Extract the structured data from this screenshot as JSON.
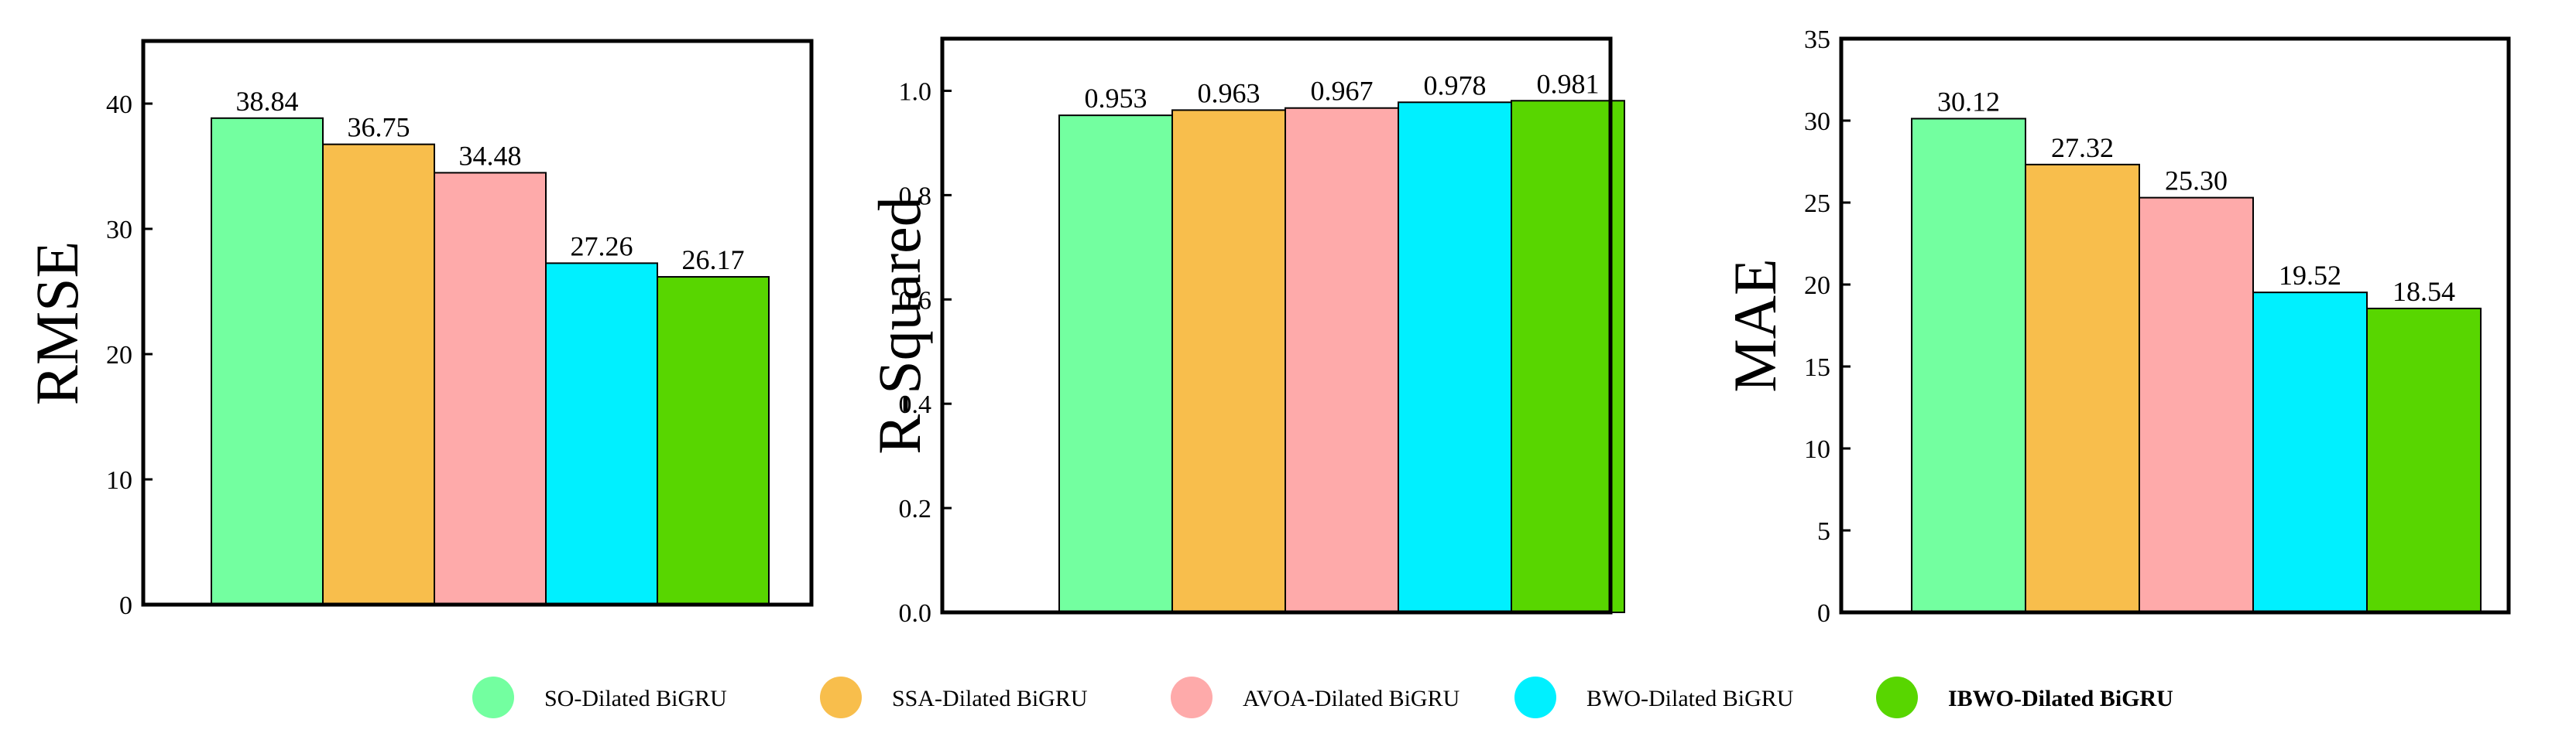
{
  "legend": [
    {
      "label": "SO-Dilated BiGRU",
      "color": "#73FFA0",
      "bold": false
    },
    {
      "label": "SSA-Dilated BiGRU",
      "color": "#F8BE4C",
      "bold": false
    },
    {
      "label": "AVOA-Dilated BiGRU",
      "color": "#FEAAAA",
      "bold": false
    },
    {
      "label": "BWO-Dilated BiGRU",
      "color": "#00F0FF",
      "bold": false
    },
    {
      "label": "IBWO-Dilated BiGRU",
      "color": "#58D600",
      "bold": true
    }
  ],
  "chart_data": [
    {
      "type": "bar",
      "title": "",
      "xlabel": "",
      "ylabel": "RMSE",
      "categories": [
        "SO-Dilated BiGRU",
        "SSA-Dilated BiGRU",
        "AVOA-Dilated BiGRU",
        "BWO-Dilated BiGRU",
        "IBWO-Dilated BiGRU"
      ],
      "values": [
        38.84,
        36.75,
        34.48,
        27.26,
        26.17
      ],
      "value_labels": [
        "38.84",
        "36.75",
        "34.48",
        "27.26",
        "26.17"
      ],
      "ylim": [
        0,
        45
      ],
      "yticks": [
        0,
        10,
        20,
        30,
        40
      ],
      "ytick_labels": [
        "0",
        "10",
        "20",
        "30",
        "40"
      ],
      "grid": false
    },
    {
      "type": "bar",
      "title": "",
      "xlabel": "",
      "ylabel": "R-Squared",
      "categories": [
        "SO-Dilated BiGRU",
        "SSA-Dilated BiGRU",
        "AVOA-Dilated BiGRU",
        "BWO-Dilated BiGRU",
        "IBWO-Dilated BiGRU"
      ],
      "values": [
        0.953,
        0.963,
        0.967,
        0.978,
        0.981
      ],
      "value_labels": [
        "0.953",
        "0.963",
        "0.967",
        "0.978",
        "0.981"
      ],
      "ylim": [
        0,
        1.1
      ],
      "yticks": [
        0,
        0.2,
        0.4,
        0.6,
        0.8,
        1.0
      ],
      "ytick_labels": [
        "0.0",
        "0.2",
        "0.4",
        "0.6",
        "0.8",
        "1.0"
      ],
      "grid": false
    },
    {
      "type": "bar",
      "title": "",
      "xlabel": "",
      "ylabel": "MAE",
      "categories": [
        "SO-Dilated BiGRU",
        "SSA-Dilated BiGRU",
        "AVOA-Dilated BiGRU",
        "BWO-Dilated BiGRU",
        "IBWO-Dilated BiGRU"
      ],
      "values": [
        30.12,
        27.32,
        25.3,
        19.52,
        18.54
      ],
      "value_labels": [
        "30.12",
        "27.32",
        "25.30",
        "19.52",
        "18.54"
      ],
      "ylim": [
        0,
        35
      ],
      "yticks": [
        0,
        5,
        10,
        15,
        20,
        25,
        30,
        35
      ],
      "ytick_labels": [
        "0",
        "5",
        "10",
        "15",
        "20",
        "25",
        "30",
        "35"
      ],
      "grid": false
    }
  ]
}
